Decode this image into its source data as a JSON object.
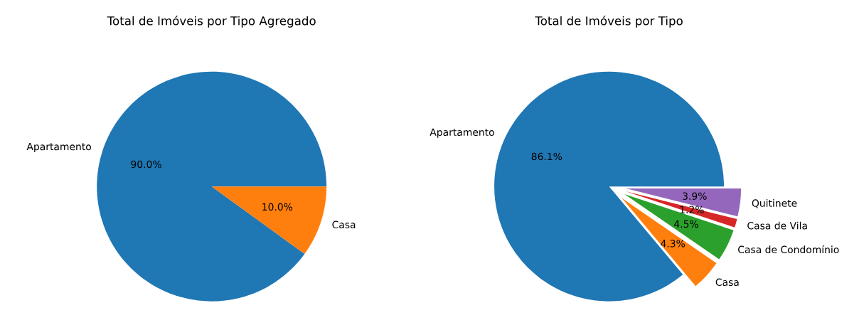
{
  "chart_data": [
    {
      "type": "pie",
      "title": "Total de Imóveis por Tipo Agregado",
      "categories": [
        "Apartamento",
        "Casa"
      ],
      "values": [
        90.0,
        10.0
      ],
      "colors": [
        "#1f77b4",
        "#ff7f0e"
      ],
      "value_labels": [
        "90.0%",
        "10.0%"
      ]
    },
    {
      "type": "pie",
      "title": "Total de Imóveis por Tipo",
      "categories": [
        "Apartamento",
        "Casa",
        "Casa de Condomínio",
        "Casa de Vila",
        "Quitinete"
      ],
      "values": [
        86.1,
        4.3,
        4.5,
        1.2,
        3.9
      ],
      "colors": [
        "#1f77b4",
        "#ff7f0e",
        "#2ca02c",
        "#d62728",
        "#9467bd"
      ],
      "value_labels": [
        "86.1%",
        "4.3%",
        "4.5%",
        "1.2%",
        "3.9%"
      ]
    }
  ]
}
